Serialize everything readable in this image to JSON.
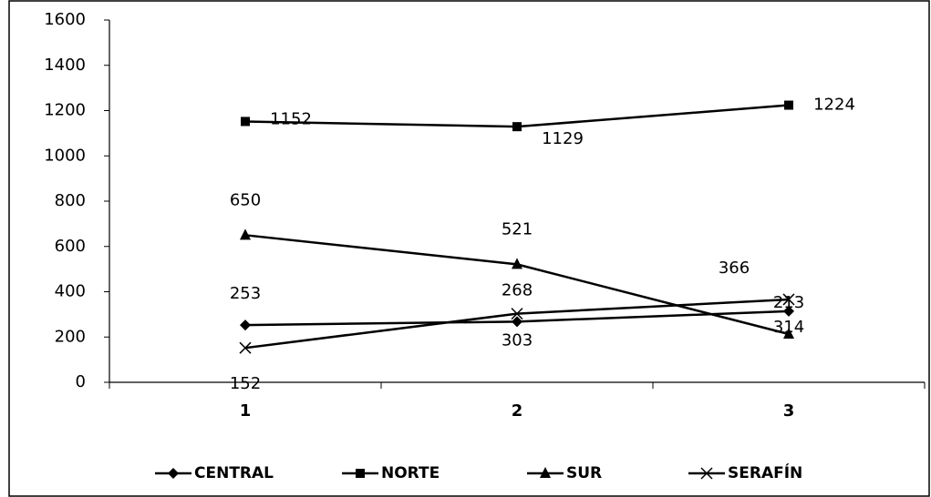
{
  "chart_data": {
    "type": "line",
    "categories": [
      "1",
      "2",
      "3"
    ],
    "series": [
      {
        "name": "CENTRAL",
        "color": "#000000",
        "marker": "diamond",
        "values": [
          253,
          268,
          314
        ]
      },
      {
        "name": "NORTE",
        "color": "#000000",
        "marker": "square",
        "values": [
          1152,
          1129,
          1224
        ]
      },
      {
        "name": "SUR",
        "color": "#000000",
        "marker": "triangle",
        "values": [
          650,
          521,
          213
        ]
      },
      {
        "name": "SERAFÍN",
        "color": "#000000",
        "marker": "x",
        "values": [
          152,
          303,
          366
        ]
      }
    ],
    "ylim": [
      0,
      1600
    ],
    "yticks": [
      0,
      200,
      400,
      600,
      800,
      1000,
      1200,
      1400,
      1600
    ],
    "grid": false,
    "legend": "bottom"
  }
}
